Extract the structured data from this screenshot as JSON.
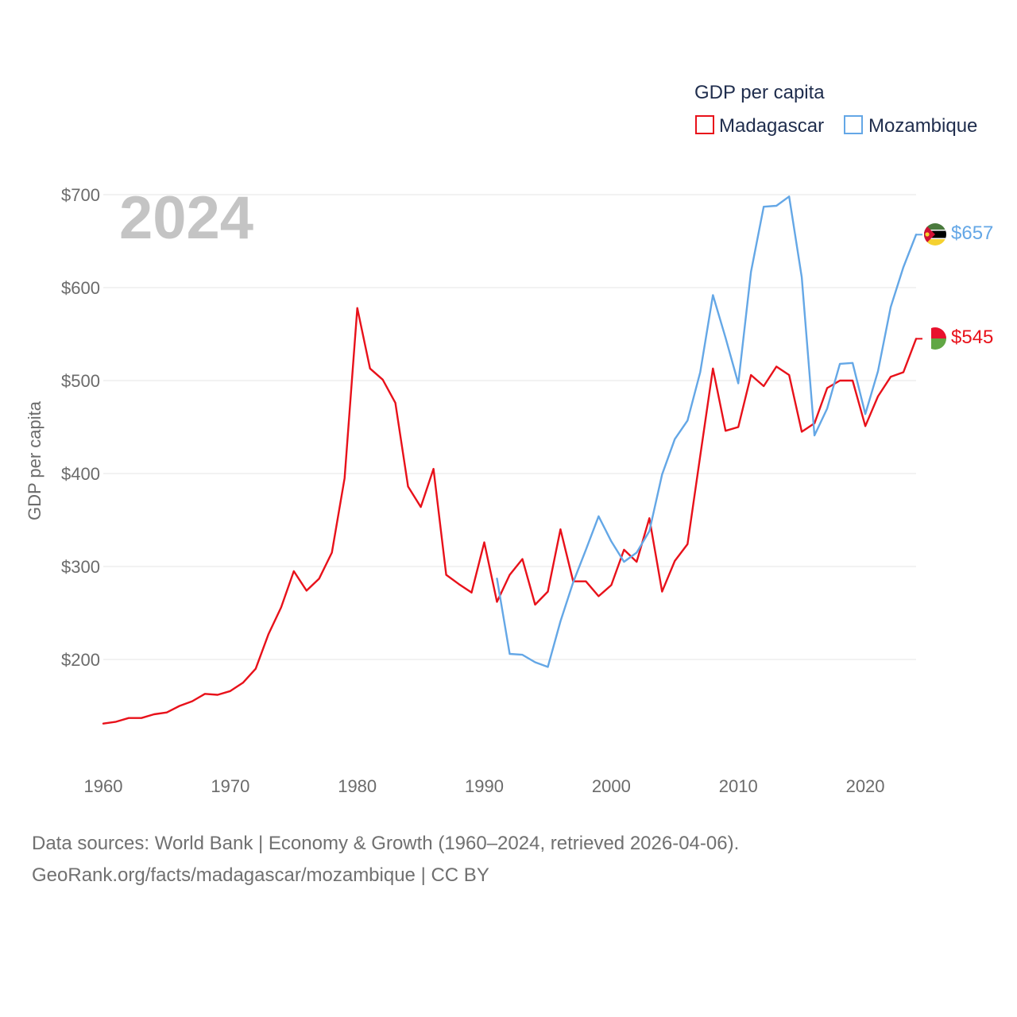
{
  "chart_data": {
    "type": "line",
    "title": "GDP per capita",
    "ylabel": "GDP per capita",
    "xlabel": "",
    "current_year_label": "2024",
    "xlim": [
      1960,
      2024
    ],
    "ylim": [
      100,
      720
    ],
    "x_ticks": [
      1960,
      1970,
      1980,
      1990,
      2000,
      2010,
      2020
    ],
    "y_ticks": [
      200,
      300,
      400,
      500,
      600,
      700
    ],
    "y_tick_labels": [
      "$200",
      "$300",
      "$400",
      "$500",
      "$600",
      "$700"
    ],
    "grid": true,
    "legend_position": "top-right",
    "series": [
      {
        "name": "Madagascar",
        "color": "#e8111a",
        "end_label": "$545",
        "flag": "madagascar-flag",
        "x": [
          1960,
          1961,
          1962,
          1963,
          1964,
          1965,
          1966,
          1967,
          1968,
          1969,
          1970,
          1971,
          1972,
          1973,
          1974,
          1975,
          1976,
          1977,
          1978,
          1979,
          1980,
          1981,
          1982,
          1983,
          1984,
          1985,
          1986,
          1987,
          1988,
          1989,
          1990,
          1991,
          1992,
          1993,
          1994,
          1995,
          1996,
          1997,
          1998,
          1999,
          2000,
          2001,
          2002,
          2003,
          2004,
          2005,
          2006,
          2007,
          2008,
          2009,
          2010,
          2011,
          2012,
          2013,
          2014,
          2015,
          2016,
          2017,
          2018,
          2019,
          2020,
          2021,
          2022,
          2023,
          2024
        ],
        "values": [
          131,
          133,
          137,
          137,
          141,
          143,
          150,
          155,
          163,
          162,
          166,
          175,
          190,
          227,
          256,
          295,
          274,
          287,
          315,
          395,
          578,
          513,
          501,
          476,
          386,
          364,
          405,
          291,
          281,
          272,
          326,
          262,
          291,
          308,
          259,
          273,
          340,
          284,
          284,
          268,
          280,
          318,
          305,
          352,
          273,
          306,
          324,
          419,
          513,
          446,
          450,
          506,
          494,
          515,
          506,
          445,
          454,
          492,
          500,
          500,
          451,
          483,
          504,
          509,
          545
        ]
      },
      {
        "name": "Mozambique",
        "color": "#64a7e6",
        "end_label": "$657",
        "flag": "mozambique-flag",
        "x": [
          1991,
          1992,
          1993,
          1994,
          1995,
          1996,
          1997,
          1998,
          1999,
          2000,
          2001,
          2002,
          2003,
          2004,
          2005,
          2006,
          2007,
          2008,
          2009,
          2010,
          2011,
          2012,
          2013,
          2014,
          2015,
          2016,
          2017,
          2018,
          2019,
          2020,
          2021,
          2022,
          2023,
          2024
        ],
        "values": [
          287,
          206,
          205,
          197,
          192,
          241,
          283,
          318,
          354,
          327,
          305,
          315,
          338,
          399,
          437,
          457,
          509,
          592,
          546,
          497,
          617,
          687,
          688,
          698,
          611,
          441,
          470,
          518,
          519,
          464,
          510,
          579,
          622,
          657
        ]
      }
    ]
  },
  "source": {
    "line1": "Data sources: World Bank | Economy & Growth (1960–2024, retrieved 2026-04-06).",
    "line2": "GeoRank.org/facts/madagascar/mozambique | CC BY"
  }
}
